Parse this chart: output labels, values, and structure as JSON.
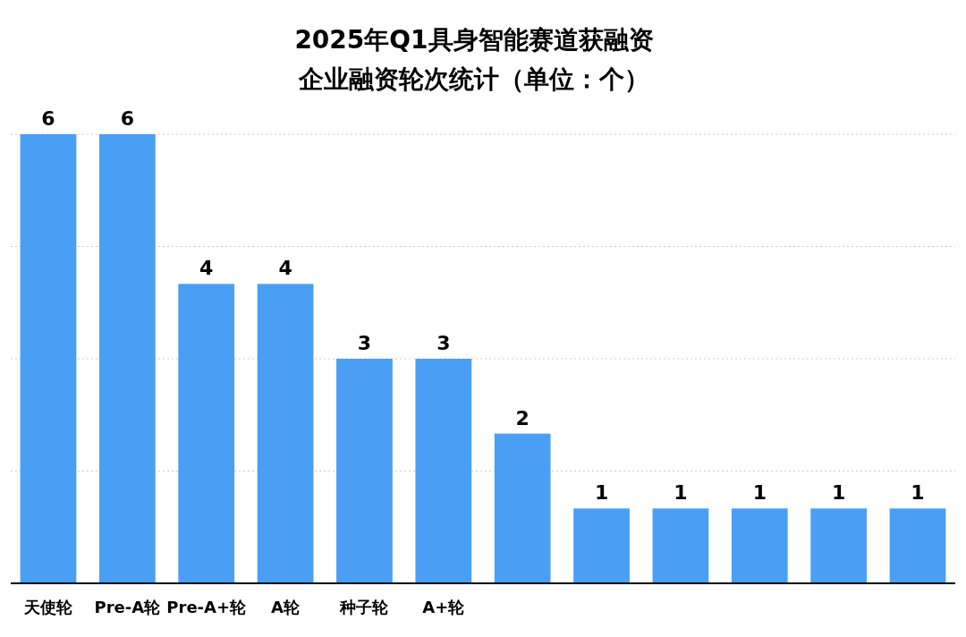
{
  "chart_data": {
    "type": "bar",
    "title": "2025年Q1具身智能赛道获融资",
    "subtitle": "企业融资轮次统计（单位：个）",
    "categories": [
      "天使轮",
      "Pre-A轮",
      "Pre-A+轮",
      "A轮",
      "种子轮",
      "A+轮",
      null,
      null,
      null,
      null,
      null,
      null
    ],
    "values": [
      6,
      6,
      4,
      4,
      3,
      3,
      2,
      1,
      1,
      1,
      1,
      1
    ],
    "color": "#4a9ff5",
    "data_labels": true,
    "ylim": [
      0,
      6
    ],
    "yticks": [
      {
        "value": 0,
        "label": null
      },
      {
        "value": 1.5,
        "label": null
      },
      {
        "value": 3,
        "label": null
      },
      {
        "value": 4.5,
        "label": null
      },
      {
        "value": 6,
        "label": null
      }
    ],
    "grid": "y",
    "tick_labels": "x"
  }
}
